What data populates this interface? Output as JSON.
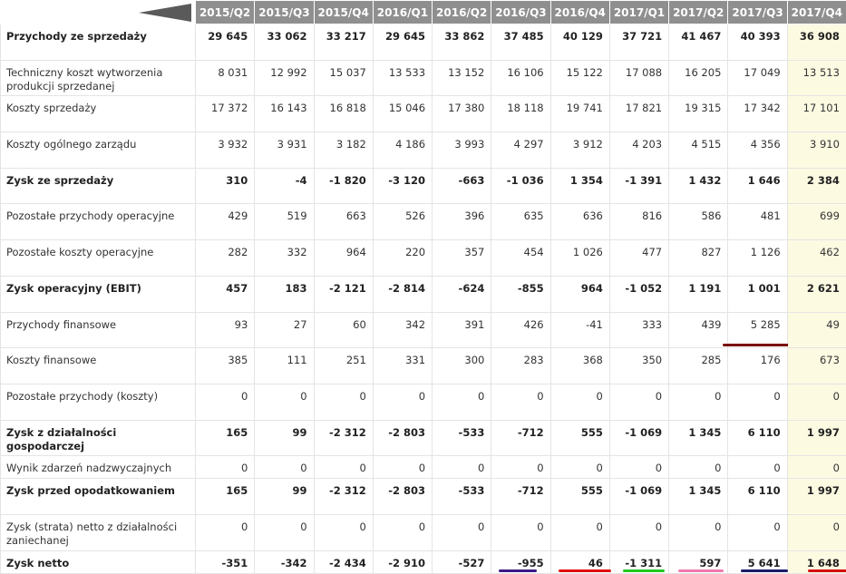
{
  "table": {
    "header": [
      "2015/Q2",
      "2015/Q3",
      "2015/Q4",
      "2016/Q1",
      "2016/Q2",
      "2016/Q3",
      "2016/Q4",
      "2017/Q1",
      "2017/Q2",
      "2017/Q3",
      "2017/Q4"
    ],
    "rows": [
      {
        "label": "Przychody ze sprzedaży",
        "bold": true,
        "values": [
          "29 645",
          "33 062",
          "33 217",
          "29 645",
          "33 862",
          "37 485",
          "40 129",
          "37 721",
          "41 467",
          "40 393",
          "36 908"
        ]
      },
      {
        "label": "Techniczny koszt wytworzenia produkcji sprzedanej",
        "bold": false,
        "values": [
          "8 031",
          "12 992",
          "15 037",
          "13 533",
          "13 152",
          "16 106",
          "15 122",
          "17 088",
          "16 205",
          "17 049",
          "13 513"
        ]
      },
      {
        "label": "Koszty sprzedaży",
        "bold": false,
        "values": [
          "17 372",
          "16 143",
          "16 818",
          "15 046",
          "17 380",
          "18 118",
          "19 741",
          "17 821",
          "19 315",
          "17 342",
          "17 101"
        ]
      },
      {
        "label": "Koszty ogólnego zarządu",
        "bold": false,
        "values": [
          "3 932",
          "3 931",
          "3 182",
          "4 186",
          "3 993",
          "4 297",
          "3 912",
          "4 203",
          "4 515",
          "4 356",
          "3 910"
        ]
      },
      {
        "label": "Zysk ze sprzedaży",
        "bold": true,
        "values": [
          "310",
          "-4",
          "-1 820",
          "-3 120",
          "-663",
          "-1 036",
          "1 354",
          "-1 391",
          "1 432",
          "1 646",
          "2 384"
        ]
      },
      {
        "label": "Pozostałe przychody operacyjne",
        "bold": false,
        "values": [
          "429",
          "519",
          "663",
          "526",
          "396",
          "635",
          "636",
          "816",
          "586",
          "481",
          "699"
        ]
      },
      {
        "label": "Pozostałe koszty operacyjne",
        "bold": false,
        "values": [
          "282",
          "332",
          "964",
          "220",
          "357",
          "454",
          "1 026",
          "477",
          "827",
          "1 126",
          "462"
        ]
      },
      {
        "label": "Zysk operacyjny (EBIT)",
        "bold": true,
        "values": [
          "457",
          "183",
          "-2 121",
          "-2 814",
          "-624",
          "-855",
          "964",
          "-1 052",
          "1 191",
          "1 001",
          "2 621"
        ]
      },
      {
        "label": "Przychody finansowe",
        "bold": false,
        "values": [
          "93",
          "27",
          "60",
          "342",
          "391",
          "426",
          "-41",
          "333",
          "439",
          "5 285",
          "49"
        ]
      },
      {
        "label": "Koszty finansowe",
        "bold": false,
        "values": [
          "385",
          "111",
          "251",
          "331",
          "300",
          "283",
          "368",
          "350",
          "285",
          "176",
          "673"
        ]
      },
      {
        "label": "Pozostałe przychody (koszty)",
        "bold": false,
        "values": [
          "0",
          "0",
          "0",
          "0",
          "0",
          "0",
          "0",
          "0",
          "0",
          "0",
          "0"
        ]
      },
      {
        "label": "Zysk z działalności gospodarczej",
        "bold": true,
        "values": [
          "165",
          "99",
          "-2 312",
          "-2 803",
          "-533",
          "-712",
          "555",
          "-1 069",
          "1 345",
          "6 110",
          "1 997"
        ]
      },
      {
        "label": "Wynik zdarzeń nadzwyczajnych",
        "bold": false,
        "values": [
          "0",
          "0",
          "0",
          "0",
          "0",
          "0",
          "0",
          "0",
          "0",
          "0",
          "0"
        ]
      },
      {
        "label": "Zysk przed opodatkowaniem",
        "bold": true,
        "values": [
          "165",
          "99",
          "-2 312",
          "-2 803",
          "-533",
          "-712",
          "555",
          "-1 069",
          "1 345",
          "6 110",
          "1 997"
        ]
      },
      {
        "label": "Zysk (strata) netto z działalności zaniechanej",
        "bold": false,
        "values": [
          "0",
          "0",
          "0",
          "0",
          "0",
          "0",
          "0",
          "0",
          "0",
          "0",
          "0"
        ]
      },
      {
        "label": "Zysk netto",
        "bold": true,
        "values": [
          "-351",
          "-342",
          "-2 434",
          "-2 910",
          "-527",
          "-955",
          "46",
          "-1 311",
          "597",
          "5 641",
          "1 648"
        ]
      }
    ]
  }
}
